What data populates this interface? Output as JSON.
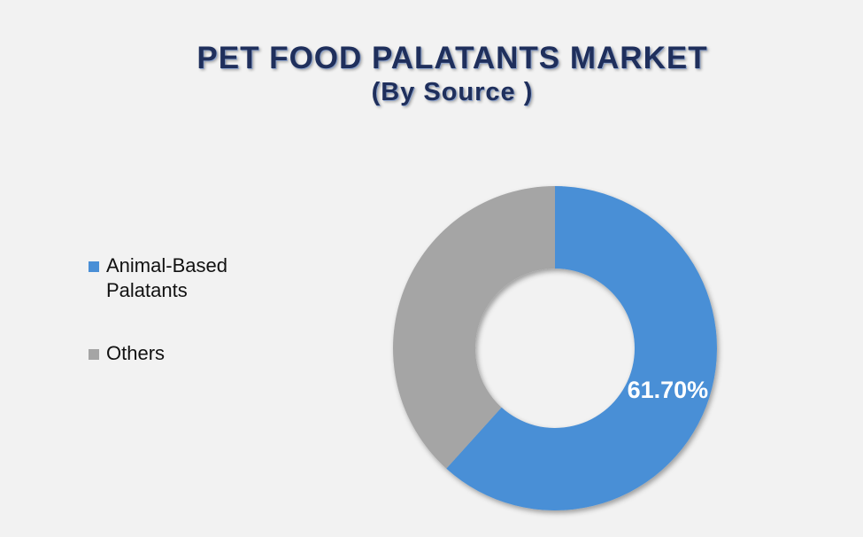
{
  "chart_data": {
    "type": "donut",
    "title": "PET FOOD PALATANTS MARKET",
    "subtitle": "(By Source )",
    "categories": [
      "Animal-Based Palatants",
      "Others"
    ],
    "values": [
      61.7,
      38.3
    ],
    "value_labels": [
      "61.70%",
      null
    ],
    "colors": [
      "#4a8fd6",
      "#a5a5a5"
    ],
    "legend": "left"
  }
}
